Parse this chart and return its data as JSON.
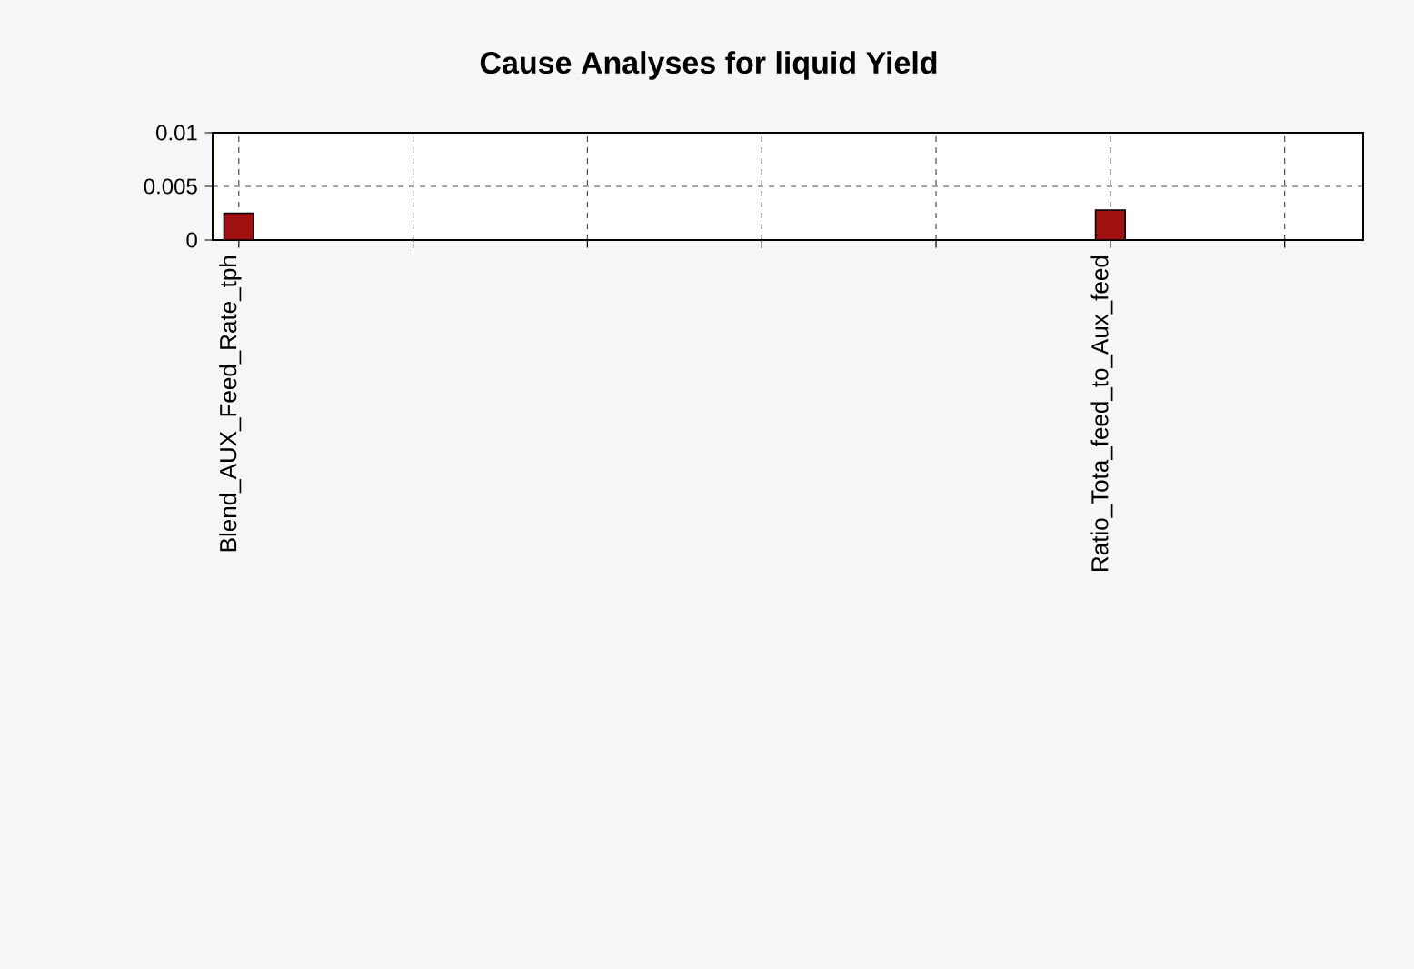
{
  "chart_data": {
    "type": "bar",
    "title": "Cause Analyses for liquid Yield",
    "categories": [
      "Blend_AUX_Feed_Rate_tph",
      null,
      null,
      null,
      null,
      "Ratio_Tota_feed_to_Aux_feed",
      null
    ],
    "values": [
      0.0025,
      null,
      null,
      null,
      null,
      0.0028,
      null
    ],
    "color": "#a01010",
    "ylim": [
      0,
      0.01
    ],
    "yticks": [
      0,
      0.005,
      0.01
    ],
    "grid": true
  }
}
